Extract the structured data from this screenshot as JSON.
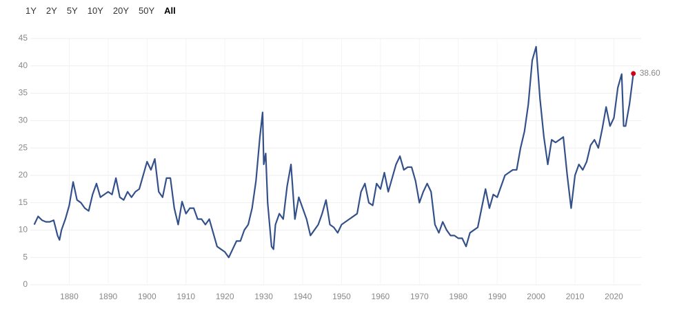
{
  "range_buttons": [
    "1Y",
    "2Y",
    "5Y",
    "10Y",
    "20Y",
    "50Y",
    "All"
  ],
  "selected_index": 6,
  "chart_data": {
    "type": "line",
    "color": "#34508a",
    "end_color": "#d0021b",
    "grid": true,
    "xlim": [
      1870,
      2027
    ],
    "xticks": [
      1880,
      1890,
      1900,
      1910,
      1920,
      1930,
      1940,
      1950,
      1960,
      1970,
      1980,
      1990,
      2000,
      2010,
      2020
    ],
    "ylim": [
      0,
      45
    ],
    "yticks": [
      0,
      5,
      10,
      15,
      20,
      25,
      30,
      35,
      40,
      45
    ],
    "x": [
      1871,
      1872,
      1873,
      1874,
      1875,
      1876,
      1877,
      1877.5,
      1878,
      1879,
      1880,
      1881,
      1882,
      1883,
      1884,
      1885,
      1886,
      1887,
      1888,
      1889,
      1890,
      1891,
      1892,
      1893,
      1894,
      1895,
      1896,
      1897,
      1898,
      1899,
      1900,
      1901,
      1902,
      1903,
      1904,
      1905,
      1906,
      1907,
      1908,
      1909,
      1910,
      1911,
      1912,
      1913,
      1914,
      1915,
      1916,
      1917,
      1918,
      1919,
      1920,
      1921,
      1922,
      1923,
      1924,
      1925,
      1926,
      1927,
      1928,
      1929,
      1929.7,
      1930,
      1930.5,
      1931,
      1932,
      1932.5,
      1933,
      1934,
      1935,
      1936,
      1937,
      1938,
      1939,
      1940,
      1941,
      1942,
      1943,
      1944,
      1945,
      1946,
      1947,
      1948,
      1949,
      1950,
      1951,
      1952,
      1953,
      1954,
      1955,
      1956,
      1957,
      1958,
      1959,
      1960,
      1961,
      1962,
      1963,
      1964,
      1965,
      1966,
      1967,
      1968,
      1969,
      1970,
      1971,
      1972,
      1973,
      1974,
      1975,
      1976,
      1977,
      1978,
      1979,
      1980,
      1981,
      1982,
      1983,
      1984,
      1985,
      1986,
      1987,
      1988,
      1989,
      1990,
      1991,
      1992,
      1993,
      1994,
      1995,
      1996,
      1997,
      1998,
      1999,
      2000,
      2001,
      2002,
      2003,
      2004,
      2005,
      2006,
      2007,
      2008,
      2009,
      2010,
      2011,
      2012,
      2013,
      2014,
      2015,
      2016,
      2017,
      2018,
      2019,
      2020,
      2021,
      2022,
      2022.5,
      2023,
      2024,
      2025
    ],
    "values": [
      11,
      12.5,
      11.8,
      11.5,
      11.5,
      11.8,
      9,
      8.2,
      10,
      12,
      14.5,
      18.8,
      15.5,
      15,
      14,
      13.5,
      16.5,
      18.5,
      16,
      16.5,
      17,
      16.5,
      19.5,
      16,
      15.5,
      17,
      16,
      17,
      17.5,
      20,
      22.5,
      21,
      23,
      17,
      16,
      19.5,
      19.5,
      14,
      11,
      15.2,
      13,
      14,
      14,
      12,
      12,
      11,
      12,
      9.5,
      7,
      6.5,
      6,
      5,
      6.5,
      8,
      8,
      10,
      11,
      14,
      19,
      27,
      31.5,
      22,
      24,
      15,
      7,
      6.5,
      11,
      13,
      12,
      18,
      22,
      12,
      16,
      14,
      12,
      9,
      10,
      11,
      13,
      15.5,
      11,
      10.5,
      9.5,
      11,
      11.5,
      12,
      12.5,
      13,
      17,
      18.5,
      15,
      14.5,
      18.5,
      17.5,
      20.5,
      17,
      19.5,
      22,
      23.5,
      21,
      21.5,
      21.5,
      19,
      15,
      17,
      18.5,
      17,
      11,
      9.5,
      11.5,
      10,
      9,
      9,
      8.5,
      8.5,
      7,
      9.5,
      10,
      10.5,
      14,
      17.5,
      14,
      16.5,
      16,
      18,
      20,
      20.5,
      21,
      21,
      25,
      28,
      33,
      41,
      43.5,
      34,
      27,
      22,
      26.5,
      26,
      26.5,
      27,
      20,
      14,
      20,
      22,
      21,
      22.5,
      25.5,
      26.5,
      25,
      28.5,
      32.5,
      29,
      30.5,
      36,
      38.5,
      29,
      29,
      33,
      38.6
    ],
    "value_labels": [
      null,
      null,
      null,
      null,
      null,
      null,
      null,
      null,
      null,
      null,
      null,
      null,
      null,
      null,
      null,
      null,
      null,
      null,
      null,
      null,
      null,
      null,
      null,
      null,
      null,
      null,
      null,
      null,
      null,
      null,
      null,
      null,
      null,
      null,
      null,
      null,
      null,
      null,
      null,
      null,
      null,
      null,
      null,
      null,
      null,
      null,
      null,
      null,
      null,
      null,
      null,
      null,
      null,
      null,
      null,
      null,
      null,
      null,
      null,
      null,
      null,
      null,
      null,
      null,
      null,
      null,
      null,
      null,
      null,
      null,
      null,
      null,
      null,
      null,
      null,
      null,
      null,
      null,
      null,
      null,
      null,
      null,
      null,
      null,
      null,
      null,
      null,
      null,
      null,
      null,
      null,
      null,
      null,
      null,
      null,
      null,
      null,
      null,
      null,
      null,
      null,
      null,
      null,
      null,
      null,
      null,
      null,
      null,
      null,
      null,
      null,
      null,
      null,
      null,
      null,
      null,
      null,
      null,
      null,
      null,
      null,
      null,
      null,
      null,
      null,
      null,
      null,
      null,
      null,
      null,
      null,
      null,
      null,
      null,
      null,
      null,
      null,
      null,
      null,
      null,
      null,
      null,
      null,
      null,
      null,
      null,
      null,
      null,
      null,
      null,
      null,
      null,
      null,
      null,
      null,
      null,
      null,
      null,
      null,
      "38.60"
    ]
  }
}
